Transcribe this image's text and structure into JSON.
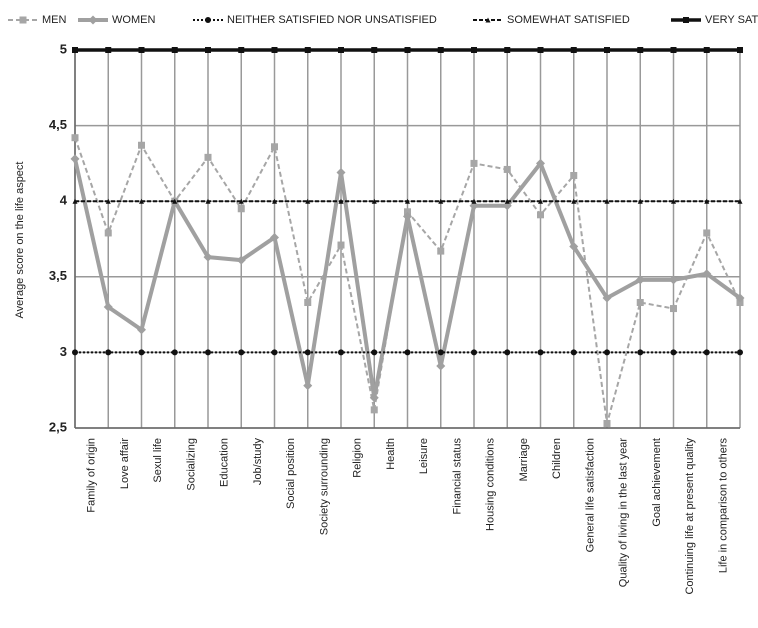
{
  "chart_data": {
    "type": "line",
    "y_label": "Average score on the life aspect",
    "categories": [
      "Family of origin",
      "Love affair",
      "Sexul life",
      "Socializing",
      "Education",
      "Job/study",
      "Social position",
      "Society surrounding",
      "Religion",
      "Health",
      "Leisure",
      "Financial status",
      "Housing conditions",
      "Marriage",
      "Children",
      "General life satisfaction",
      "Quality of living in the last year",
      "Goal achievement",
      "Continuing life at present quality",
      "Life in comparison to others",
      null
    ],
    "series": [
      {
        "name": "MEN",
        "color": "#a6a6a6",
        "values": [
          4.42,
          3.79,
          4.37,
          4.0,
          4.29,
          3.95,
          4.36,
          3.33,
          3.71,
          2.62,
          3.93,
          3.67,
          4.25,
          4.21,
          3.91,
          4.17,
          2.53,
          3.33,
          3.29,
          3.79,
          3.33
        ]
      },
      {
        "name": "WOMEN",
        "color": "#a0a0a0",
        "values": [
          4.28,
          3.3,
          3.15,
          4.0,
          3.63,
          3.61,
          3.76,
          2.78,
          4.19,
          2.7,
          3.9,
          2.91,
          3.97,
          3.97,
          4.25,
          3.7,
          3.36,
          3.48,
          3.48,
          3.52,
          3.36
        ]
      },
      {
        "name": "NEITHER SATISFIED NOR UNSATISFIED",
        "color": "#111111",
        "values": [
          3,
          3,
          3,
          3,
          3,
          3,
          3,
          3,
          3,
          3,
          3,
          3,
          3,
          3,
          3,
          3,
          3,
          3,
          3,
          3,
          3
        ]
      },
      {
        "name": "SOMEWHAT SATISFIED",
        "color": "#111111",
        "values": [
          4,
          4,
          4,
          4,
          4,
          4,
          4,
          4,
          4,
          4,
          4,
          4,
          4,
          4,
          4,
          4,
          4,
          4,
          4,
          4,
          4
        ]
      },
      {
        "name": "VERY SATISFIED",
        "color": "#111111",
        "values": [
          5,
          5,
          5,
          5,
          5,
          5,
          5,
          5,
          5,
          5,
          5,
          5,
          5,
          5,
          5,
          5,
          5,
          5,
          5,
          5,
          5
        ]
      }
    ],
    "ylim": [
      2.5,
      5
    ],
    "yticks": [
      {
        "value": 2.5,
        "label": "2,5"
      },
      3,
      {
        "value": 3.5,
        "label": "3,5"
      },
      4,
      {
        "value": 4.5,
        "label": "4,5"
      },
      5
    ],
    "grid": true,
    "legend": "top"
  }
}
